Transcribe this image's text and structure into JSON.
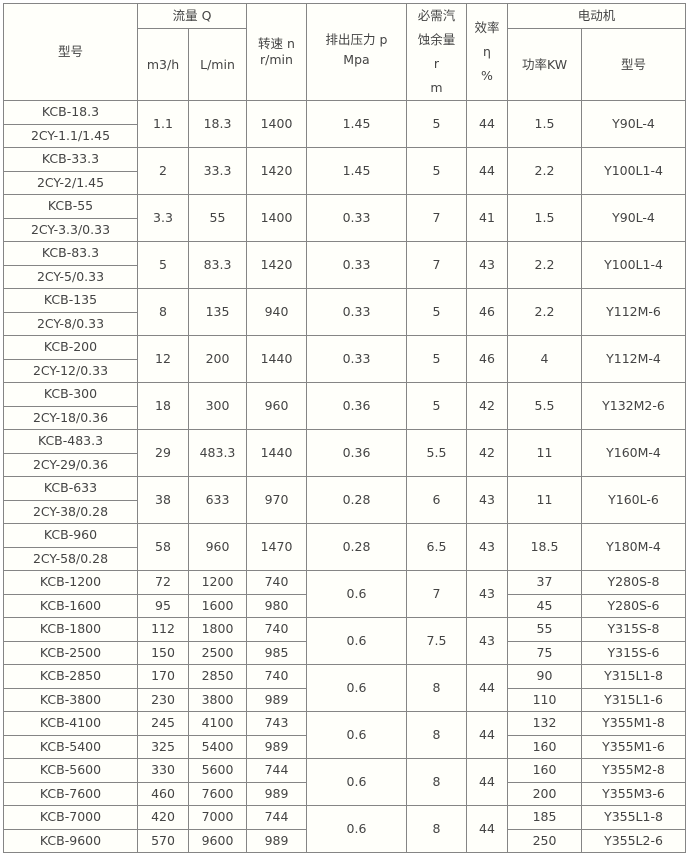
{
  "header": {
    "model": "型号",
    "flow": "流量 Q",
    "flow_m3h": "m3/h",
    "flow_lmin": "L/min",
    "speed": [
      "转速 n",
      "r/min"
    ],
    "pressure": [
      "排出压力 p",
      "Mpa"
    ],
    "npsh": [
      "必需汽",
      "蚀余量",
      "r",
      "m"
    ],
    "efficiency": [
      "效率",
      "η",
      "%"
    ],
    "motor": "电动机",
    "motor_power": "功率KW",
    "motor_model": "型号"
  },
  "groups_a": [
    {
      "models": [
        "KCB-18.3",
        "2CY-1.1/1.45"
      ],
      "m3h": "1.1",
      "lmin": "18.3",
      "speed": "1400",
      "pressure": "1.45",
      "npsh": "5",
      "eff": "44",
      "power": "1.5",
      "motor": "Y90L-4"
    },
    {
      "models": [
        "KCB-33.3",
        "2CY-2/1.45"
      ],
      "m3h": "2",
      "lmin": "33.3",
      "speed": "1420",
      "pressure": "1.45",
      "npsh": "5",
      "eff": "44",
      "power": "2.2",
      "motor": "Y100L1-4"
    },
    {
      "models": [
        "KCB-55",
        "2CY-3.3/0.33"
      ],
      "m3h": "3.3",
      "lmin": "55",
      "speed": "1400",
      "pressure": "0.33",
      "npsh": "7",
      "eff": "41",
      "power": "1.5",
      "motor": "Y90L-4"
    },
    {
      "models": [
        "KCB-83.3",
        "2CY-5/0.33"
      ],
      "m3h": "5",
      "lmin": "83.3",
      "speed": "1420",
      "pressure": "0.33",
      "npsh": "7",
      "eff": "43",
      "power": "2.2",
      "motor": "Y100L1-4"
    },
    {
      "models": [
        "KCB-135",
        "2CY-8/0.33"
      ],
      "m3h": "8",
      "lmin": "135",
      "speed": "940",
      "pressure": "0.33",
      "npsh": "5",
      "eff": "46",
      "power": "2.2",
      "motor": "Y112M-6"
    },
    {
      "models": [
        "KCB-200",
        "2CY-12/0.33"
      ],
      "m3h": "12",
      "lmin": "200",
      "speed": "1440",
      "pressure": "0.33",
      "npsh": "5",
      "eff": "46",
      "power": "4",
      "motor": "Y112M-4"
    },
    {
      "models": [
        "KCB-300",
        "2CY-18/0.36"
      ],
      "m3h": "18",
      "lmin": "300",
      "speed": "960",
      "pressure": "0.36",
      "npsh": "5",
      "eff": "42",
      "power": "5.5",
      "motor": "Y132M2-6"
    },
    {
      "models": [
        "KCB-483.3",
        "2CY-29/0.36"
      ],
      "m3h": "29",
      "lmin": "483.3",
      "speed": "1440",
      "pressure": "0.36",
      "npsh": "5.5",
      "eff": "42",
      "power": "11",
      "motor": "Y160M-4"
    },
    {
      "models": [
        "KCB-633",
        "2CY-38/0.28"
      ],
      "m3h": "38",
      "lmin": "633",
      "speed": "970",
      "pressure": "0.28",
      "npsh": "6",
      "eff": "43",
      "power": "11",
      "motor": "Y160L-6"
    },
    {
      "models": [
        "KCB-960",
        "2CY-58/0.28"
      ],
      "m3h": "58",
      "lmin": "960",
      "speed": "1470",
      "pressure": "0.28",
      "npsh": "6.5",
      "eff": "43",
      "power": "18.5",
      "motor": "Y180M-4"
    }
  ],
  "groups_b": [
    {
      "pressure": "0.6",
      "npsh": "7",
      "eff": "43",
      "rows": [
        {
          "model": "KCB-1200",
          "m3h": "72",
          "lmin": "1200",
          "speed": "740",
          "power": "37",
          "motor": "Y280S-8"
        },
        {
          "model": "KCB-1600",
          "m3h": "95",
          "lmin": "1600",
          "speed": "980",
          "power": "45",
          "motor": "Y280S-6"
        }
      ]
    },
    {
      "pressure": "0.6",
      "npsh": "7.5",
      "eff": "43",
      "rows": [
        {
          "model": "KCB-1800",
          "m3h": "112",
          "lmin": "1800",
          "speed": "740",
          "power": "55",
          "motor": "Y315S-8"
        },
        {
          "model": "KCB-2500",
          "m3h": "150",
          "lmin": "2500",
          "speed": "985",
          "power": "75",
          "motor": "Y315S-6"
        }
      ]
    },
    {
      "pressure": "0.6",
      "npsh": "8",
      "eff": "44",
      "rows": [
        {
          "model": "KCB-2850",
          "m3h": "170",
          "lmin": "2850",
          "speed": "740",
          "power": "90",
          "motor": "Y315L1-8"
        },
        {
          "model": "KCB-3800",
          "m3h": "230",
          "lmin": "3800",
          "speed": "989",
          "power": "110",
          "motor": "Y315L1-6"
        }
      ]
    },
    {
      "pressure": "0.6",
      "npsh": "8",
      "eff": "44",
      "rows": [
        {
          "model": "KCB-4100",
          "m3h": "245",
          "lmin": "4100",
          "speed": "743",
          "power": "132",
          "motor": "Y355M1-8"
        },
        {
          "model": "KCB-5400",
          "m3h": "325",
          "lmin": "5400",
          "speed": "989",
          "power": "160",
          "motor": "Y355M1-6"
        }
      ]
    },
    {
      "pressure": "0.6",
      "npsh": "8",
      "eff": "44",
      "rows": [
        {
          "model": "KCB-5600",
          "m3h": "330",
          "lmin": "5600",
          "speed": "744",
          "power": "160",
          "motor": "Y355M2-8"
        },
        {
          "model": "KCB-7600",
          "m3h": "460",
          "lmin": "7600",
          "speed": "989",
          "power": "200",
          "motor": "Y355M3-6"
        }
      ]
    },
    {
      "pressure": "0.6",
      "npsh": "8",
      "eff": "44",
      "rows": [
        {
          "model": "KCB-7000",
          "m3h": "420",
          "lmin": "7000",
          "speed": "744",
          "power": "185",
          "motor": "Y355L1-8"
        },
        {
          "model": "KCB-9600",
          "m3h": "570",
          "lmin": "9600",
          "speed": "989",
          "power": "250",
          "motor": "Y355L2-6"
        }
      ]
    }
  ]
}
